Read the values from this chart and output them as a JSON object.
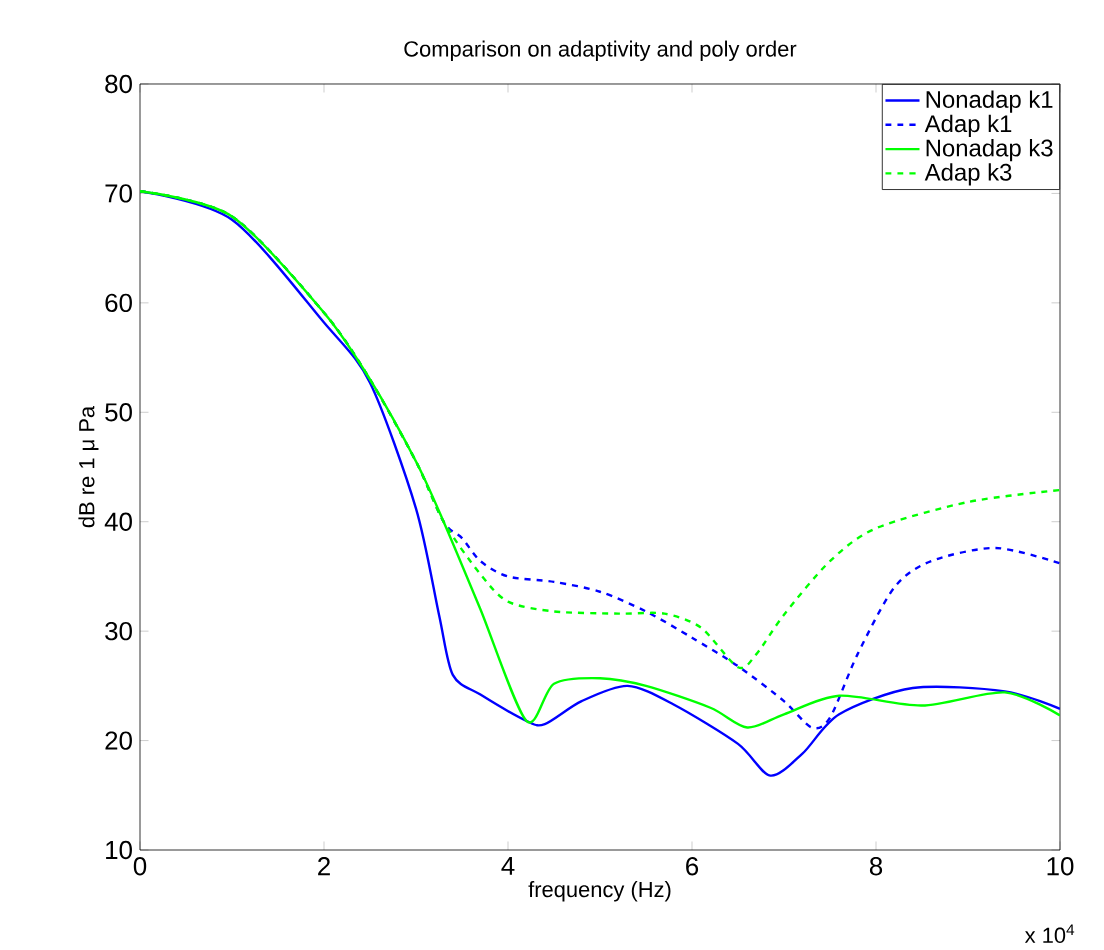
{
  "chart_data": {
    "type": "line",
    "title": "Comparison on adaptivity and poly order",
    "xlabel": "frequency (Hz)",
    "ylabel": "dB re 1 μ Pa",
    "annotations": [
      "x 10$^{4}$"
    ],
    "xlim": [
      0,
      10
    ],
    "ylim": [
      10,
      80
    ],
    "xticks": [
      0,
      2,
      4,
      6,
      8,
      10
    ],
    "yticks": [
      10,
      20,
      30,
      40,
      50,
      60,
      70,
      80
    ],
    "legend": "top right",
    "grid": false,
    "series": [
      {
        "name": "Nonadap k1",
        "color": "#0000ff",
        "line_style": "solid",
        "x": [
          0,
          1,
          2,
          2.5,
          3,
          3.25,
          3.4,
          3.7,
          4.2,
          4.4,
          4.8,
          5.3,
          5.8,
          6.5,
          6.85,
          7.2,
          7.6,
          8.4,
          9.4,
          10
        ],
        "values": [
          70.2,
          67.6,
          58.2,
          52.7,
          41.2,
          31.5,
          26,
          24.2,
          21.8,
          21.5,
          23.6,
          25,
          23.3,
          19.7,
          16.8,
          18.8,
          22.4,
          24.8,
          24.5,
          22.9
        ]
      },
      {
        "name": "Adap k1",
        "color": "#0000ff",
        "line_style": "dashed",
        "x": [
          0,
          1,
          2,
          2.5,
          3,
          3.3,
          3.5,
          3.7,
          4,
          4.5,
          5,
          5.5,
          6,
          6.5,
          7,
          7.3,
          7.5,
          7.8,
          8.2,
          8.6,
          9.3,
          10
        ],
        "values": [
          70.2,
          67.9,
          59.1,
          53,
          45.5,
          40,
          38.5,
          36.4,
          35,
          34.5,
          33.6,
          31.8,
          29.4,
          26.8,
          23.6,
          21.2,
          22.1,
          27.9,
          34,
          36.4,
          37.6,
          36.2
        ]
      },
      {
        "name": "Nonadap k3",
        "color": "#00ff00",
        "line_style": "solid",
        "x": [
          0,
          1,
          2,
          2.5,
          3,
          3.3,
          3.7,
          4.2,
          4.5,
          5,
          5.5,
          6.2,
          6.6,
          7,
          7.6,
          8.5,
          9.4,
          10
        ],
        "values": [
          70.2,
          67.9,
          59.1,
          53,
          45.5,
          40,
          32,
          21.8,
          25.2,
          25.7,
          25,
          23,
          21.2,
          22.4,
          24.1,
          23.2,
          24.4,
          22.3
        ]
      },
      {
        "name": "Adap k3",
        "color": "#00ff00",
        "line_style": "dashed",
        "x": [
          0,
          1,
          2,
          2.5,
          3,
          3.3,
          3.7,
          4,
          4.5,
          5.2,
          5.7,
          6.1,
          6.5,
          6.7,
          7,
          7.5,
          8,
          9,
          10
        ],
        "values": [
          70.2,
          67.9,
          59.1,
          53,
          45.5,
          40,
          35.2,
          32.7,
          31.8,
          31.6,
          31.6,
          30.3,
          26.7,
          27.9,
          31.5,
          36.4,
          39.4,
          41.8,
          42.9
        ]
      }
    ]
  }
}
